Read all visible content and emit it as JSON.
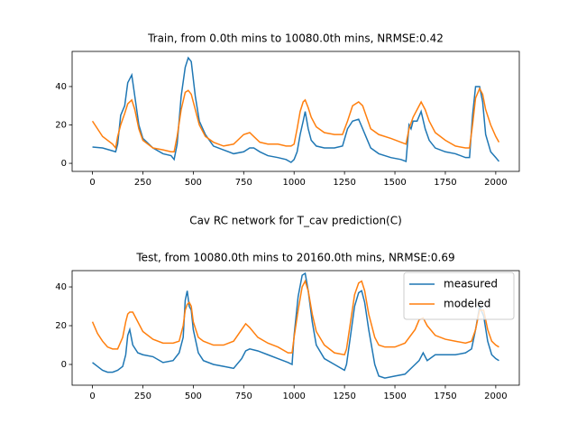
{
  "suptitle": "Cav RC network for T_cav prediction(C)",
  "chart_data": [
    {
      "type": "line",
      "title": "Train, from 0.0th mins to 10080.0th mins, NRMSE:0.42",
      "x": [
        0,
        50,
        100,
        115,
        125,
        140,
        160,
        175,
        195,
        210,
        230,
        250,
        300,
        350,
        390,
        405,
        420,
        440,
        460,
        475,
        490,
        510,
        530,
        560,
        600,
        650,
        700,
        750,
        780,
        800,
        830,
        870,
        920,
        960,
        985,
        1000,
        1015,
        1030,
        1045,
        1055,
        1070,
        1085,
        1110,
        1150,
        1200,
        1240,
        1265,
        1290,
        1320,
        1340,
        1360,
        1380,
        1420,
        1480,
        1530,
        1555,
        1570,
        1580,
        1590,
        1610,
        1630,
        1650,
        1670,
        1700,
        1750,
        1800,
        1850,
        1870,
        1885,
        1900,
        1920,
        1935,
        1950,
        1975,
        2000,
        2016
      ],
      "series": [
        {
          "name": "measured",
          "color": "#1f77b4",
          "values": [
            8.5,
            8,
            6.5,
            6,
            10,
            25,
            30,
            42,
            46,
            35,
            20,
            13,
            8,
            5,
            4,
            2,
            10,
            35,
            50,
            55,
            53,
            35,
            22,
            15,
            9,
            7,
            5,
            6,
            8,
            8,
            6,
            4,
            3,
            2,
            0.5,
            2,
            6,
            15,
            22,
            27,
            18,
            12,
            9,
            8,
            8,
            9,
            18,
            22,
            23,
            18,
            13,
            8,
            5,
            3,
            2,
            1,
            20,
            18,
            22,
            22,
            27,
            18,
            12,
            8,
            6,
            5,
            3,
            3,
            25,
            40,
            40,
            32,
            15,
            6,
            3,
            1
          ]
        },
        {
          "name": "modeled",
          "color": "#ff7f0e",
          "values": [
            22,
            14,
            10,
            8,
            14,
            20,
            26,
            31,
            33,
            28,
            18,
            12,
            8,
            7,
            6,
            6,
            14,
            28,
            37,
            38,
            36,
            28,
            20,
            14,
            11,
            9,
            10,
            15,
            16,
            14,
            11,
            10,
            10,
            9,
            9,
            10,
            18,
            27,
            32,
            33,
            29,
            24,
            19,
            16,
            15,
            15,
            22,
            30,
            32,
            30,
            24,
            18,
            15,
            13,
            11,
            10,
            18,
            21,
            24,
            28,
            32,
            28,
            22,
            16,
            12,
            9,
            8,
            8,
            20,
            34,
            39,
            36,
            28,
            20,
            14,
            11
          ]
        }
      ],
      "xlim": [
        -100.8,
        2116.8
      ],
      "xticks": [
        0,
        250,
        500,
        750,
        1000,
        1250,
        1500,
        1750,
        2000
      ],
      "ylim": [
        -4.2,
        58.3
      ],
      "yticks": [
        0,
        20,
        40
      ]
    },
    {
      "type": "line",
      "title": "Test, from 10080.0th mins to 20160.0th mins, NRMSE:0.69",
      "x": [
        0,
        25,
        50,
        75,
        100,
        125,
        150,
        165,
        175,
        185,
        200,
        225,
        250,
        300,
        350,
        400,
        430,
        450,
        460,
        470,
        480,
        490,
        500,
        525,
        550,
        600,
        650,
        700,
        740,
        760,
        780,
        820,
        870,
        920,
        970,
        990,
        1000,
        1020,
        1040,
        1055,
        1070,
        1090,
        1110,
        1150,
        1200,
        1250,
        1260,
        1280,
        1300,
        1320,
        1335,
        1350,
        1370,
        1400,
        1420,
        1450,
        1500,
        1550,
        1600,
        1620,
        1640,
        1660,
        1700,
        1750,
        1800,
        1850,
        1880,
        1900,
        1920,
        1940,
        1960,
        1980,
        2000,
        2016
      ],
      "series": [
        {
          "name": "measured",
          "color": "#1f77b4",
          "values": [
            1,
            -1,
            -3,
            -4,
            -4,
            -3,
            -1,
            5,
            15,
            18,
            10,
            6,
            5,
            4,
            1,
            2,
            6,
            14,
            33,
            38,
            30,
            28,
            18,
            6,
            2,
            0,
            -1,
            -2,
            3,
            7,
            8,
            7,
            5,
            3,
            1,
            0,
            15,
            35,
            46,
            47,
            38,
            22,
            10,
            3,
            0,
            -3,
            0,
            15,
            30,
            37,
            38,
            32,
            18,
            0,
            -6,
            -7,
            -6,
            -5,
            0,
            2,
            6,
            2,
            5,
            5,
            5,
            6,
            8,
            18,
            30,
            25,
            12,
            5,
            3,
            2
          ]
        },
        {
          "name": "modeled",
          "color": "#ff7f0e",
          "values": [
            22,
            16,
            12,
            9,
            8,
            8,
            14,
            22,
            26,
            27,
            27,
            22,
            17,
            13,
            11,
            11,
            12,
            20,
            28,
            31,
            32,
            30,
            22,
            14,
            12,
            10,
            10,
            12,
            18,
            21,
            19,
            14,
            11,
            9,
            6,
            6,
            14,
            28,
            40,
            43,
            38,
            26,
            17,
            10,
            6,
            5,
            8,
            22,
            36,
            42,
            43,
            38,
            26,
            14,
            10,
            9,
            9,
            11,
            18,
            23,
            24,
            20,
            15,
            13,
            12,
            11,
            12,
            18,
            28,
            28,
            18,
            12,
            10,
            9
          ]
        }
      ],
      "xlim": [
        -100.8,
        2116.8
      ],
      "xticks": [
        0,
        250,
        500,
        750,
        1000,
        1250,
        1500,
        1750,
        2000
      ],
      "ylim": [
        -10.7,
        48.4
      ],
      "yticks": [
        0,
        20,
        40
      ],
      "legend": "upper right"
    }
  ]
}
